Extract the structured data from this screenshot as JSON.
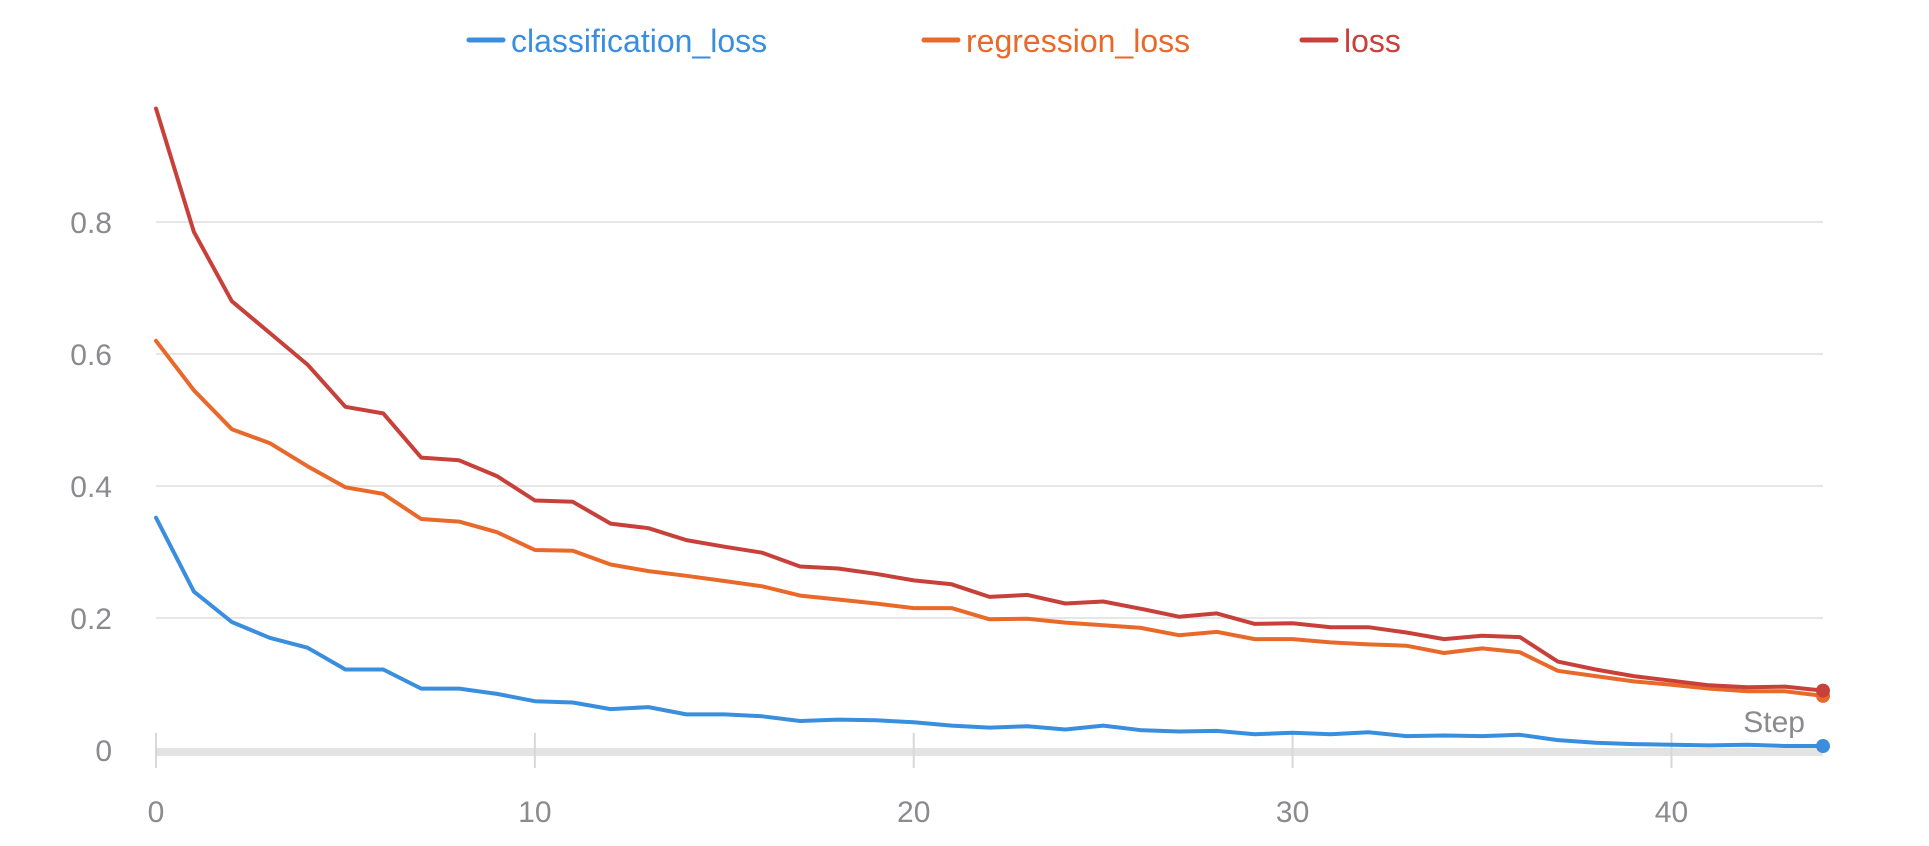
{
  "chart_data": {
    "type": "line",
    "xlabel": "Step",
    "ylabel": "",
    "title": "",
    "xlim": [
      0,
      44
    ],
    "ylim": [
      0,
      0.97
    ],
    "x_ticks": [
      0,
      10,
      20,
      30,
      40
    ],
    "x_tick_labels": [
      "0",
      "10",
      "20",
      "30",
      "40"
    ],
    "y_ticks": [
      0,
      0.2,
      0.4,
      0.6,
      0.8
    ],
    "y_tick_labels": [
      "0",
      "0.2",
      "0.4",
      "0.6",
      "0.8"
    ],
    "grid": true,
    "legend": "top",
    "x": [
      0,
      1,
      2,
      3,
      4,
      5,
      6,
      7,
      8,
      9,
      10,
      11,
      12,
      13,
      14,
      15,
      16,
      17,
      18,
      19,
      20,
      21,
      22,
      23,
      24,
      25,
      26,
      27,
      28,
      29,
      30,
      31,
      32,
      33,
      34,
      35,
      36,
      37,
      38,
      39,
      40,
      41,
      42,
      43,
      44
    ],
    "series": [
      {
        "name": "classification_loss",
        "color": "#3a8ede",
        "values": [
          0.352,
          0.24,
          0.194,
          0.17,
          0.155,
          0.122,
          0.122,
          0.093,
          0.093,
          0.085,
          0.074,
          0.072,
          0.062,
          0.065,
          0.054,
          0.054,
          0.051,
          0.044,
          0.046,
          0.045,
          0.042,
          0.037,
          0.034,
          0.036,
          0.031,
          0.037,
          0.03,
          0.028,
          0.029,
          0.024,
          0.026,
          0.024,
          0.027,
          0.021,
          0.022,
          0.021,
          0.023,
          0.015,
          0.011,
          0.009,
          0.008,
          0.007,
          0.008,
          0.006,
          0.006
        ]
      },
      {
        "name": "regression_loss",
        "color": "#e8692a",
        "values": [
          0.62,
          0.545,
          0.486,
          0.465,
          0.43,
          0.398,
          0.388,
          0.35,
          0.346,
          0.33,
          0.303,
          0.302,
          0.281,
          0.271,
          0.264,
          0.256,
          0.248,
          0.234,
          0.228,
          0.222,
          0.215,
          0.215,
          0.198,
          0.199,
          0.193,
          0.189,
          0.185,
          0.174,
          0.179,
          0.168,
          0.168,
          0.163,
          0.16,
          0.158,
          0.147,
          0.154,
          0.148,
          0.12,
          0.112,
          0.104,
          0.099,
          0.093,
          0.089,
          0.089,
          0.082
        ]
      },
      {
        "name": "loss",
        "color": "#c7413a",
        "values": [
          0.972,
          0.785,
          0.68,
          0.632,
          0.584,
          0.52,
          0.51,
          0.443,
          0.439,
          0.415,
          0.378,
          0.376,
          0.343,
          0.336,
          0.318,
          0.308,
          0.299,
          0.278,
          0.275,
          0.267,
          0.257,
          0.251,
          0.232,
          0.235,
          0.222,
          0.225,
          0.214,
          0.202,
          0.207,
          0.191,
          0.192,
          0.186,
          0.186,
          0.178,
          0.168,
          0.173,
          0.171,
          0.134,
          0.122,
          0.112,
          0.105,
          0.098,
          0.095,
          0.096,
          0.09
        ]
      }
    ]
  }
}
